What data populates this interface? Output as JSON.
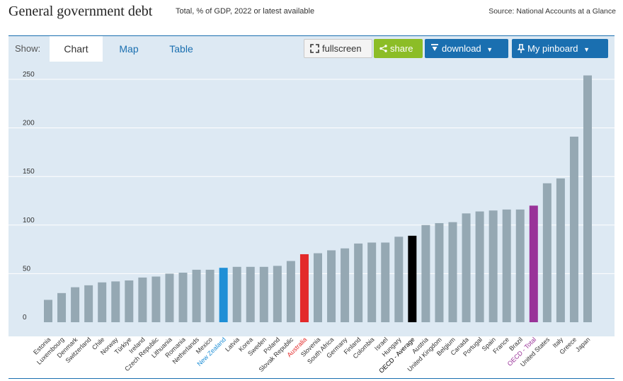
{
  "header": {
    "title": "General government debt",
    "subtitle": "Total, % of GDP, 2022 or latest available",
    "source": "Source: National Accounts at a Glance"
  },
  "toolbar": {
    "show_label": "Show:",
    "tabs": [
      {
        "label": "Chart",
        "active": true
      },
      {
        "label": "Map",
        "active": false
      },
      {
        "label": "Table",
        "active": false
      }
    ],
    "fullscreen_label": "fullscreen",
    "share_label": "share",
    "download_label": "download",
    "pinboard_label": "My pinboard",
    "icons": [
      "fullscreen-icon",
      "share-icon",
      "download-icon",
      "pin-icon",
      "caret-down-icon"
    ]
  },
  "colors": {
    "bar_default": "#95a8b3",
    "bar_new_zealand": "#1f8fd6",
    "bar_australia": "#e32a2a",
    "bar_oecd_average": "#000000",
    "bar_oecd_total": "#993399",
    "plot_background": "#dde9f3",
    "accent": "#1a6fb0"
  },
  "chart_data": {
    "type": "bar",
    "title": "General government debt",
    "subtitle": "Total, % of GDP, 2022 or latest available",
    "ylim": [
      0,
      260
    ],
    "yticks": [
      0,
      50,
      100,
      150,
      200,
      250
    ],
    "grid": true,
    "categories": [
      "Estonia",
      "Luxembourg",
      "Denmark",
      "Switzerland",
      "Chile",
      "Norway",
      "Türkiye",
      "Ireland",
      "Czech Republic",
      "Lithuania",
      "Romania",
      "Netherlands",
      "Mexico",
      "New Zealand",
      "Latvia",
      "Korea",
      "Sweden",
      "Poland",
      "Slovak Republic",
      "Australia",
      "Slovenia",
      "South Africa",
      "Germany",
      "Finland",
      "Colombia",
      "Israel",
      "Hungary",
      "OECD - Average",
      "Austria",
      "United Kingdom",
      "Belgium",
      "Canada",
      "Portugal",
      "Spain",
      "France",
      "Brazil",
      "OECD - Total",
      "United States",
      "Italy",
      "Greece",
      "Japan"
    ],
    "values": [
      23,
      30,
      36,
      38,
      41,
      42,
      43,
      46,
      47,
      50,
      51,
      54,
      54,
      56,
      57,
      57,
      57,
      58,
      63,
      70,
      71,
      74,
      76,
      81,
      82,
      82,
      88,
      89,
      100,
      102,
      103,
      112,
      114,
      115,
      116,
      116,
      120,
      143,
      148,
      191,
      254
    ],
    "highlights": {
      "New Zealand": "#1f8fd6",
      "Australia": "#e32a2a",
      "OECD - Average": "#000000",
      "OECD - Total": "#993399"
    }
  }
}
